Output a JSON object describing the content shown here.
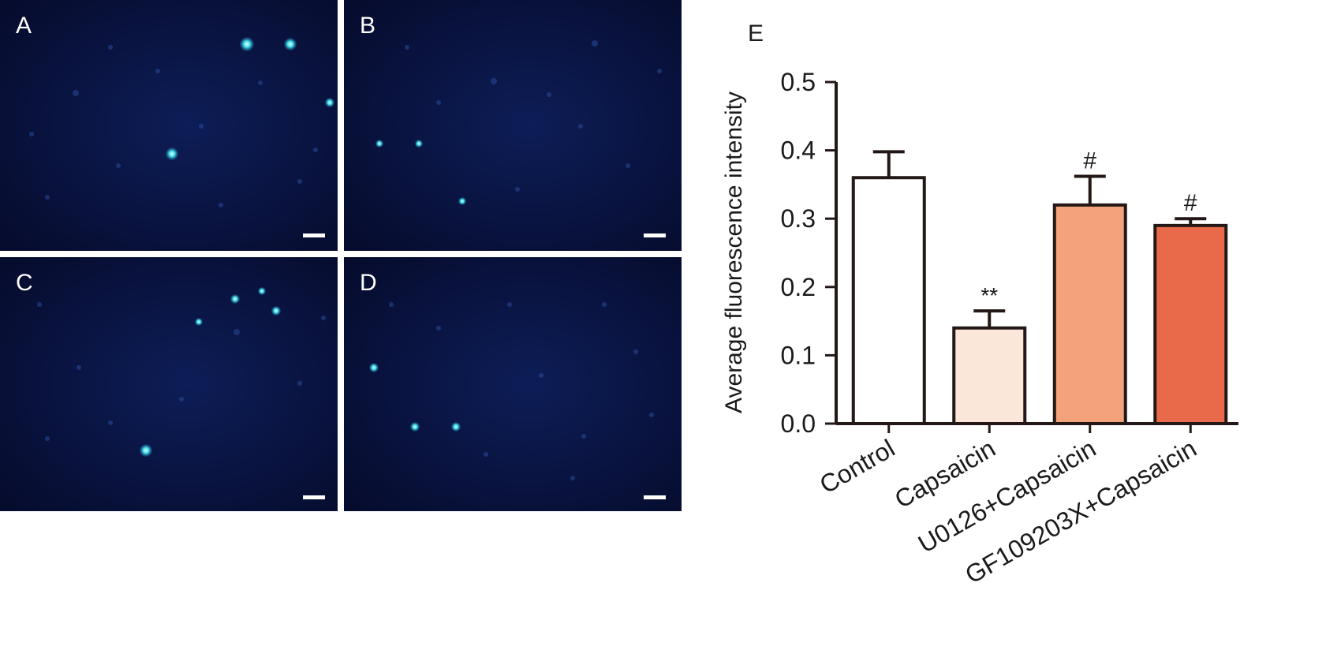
{
  "micrographs": [
    {
      "label": "A",
      "cells": [
        [
          313,
          56,
          9
        ],
        [
          368,
          56,
          8
        ],
        [
          218,
          195,
          8
        ],
        [
          418,
          130,
          6
        ],
        [
          96,
          118,
          4
        ],
        [
          150,
          210,
          3
        ],
        [
          330,
          105,
          3
        ],
        [
          60,
          250,
          3
        ],
        [
          255,
          160,
          3
        ],
        [
          380,
          230,
          3
        ],
        [
          140,
          60,
          3
        ],
        [
          200,
          90,
          3
        ],
        [
          280,
          260,
          3
        ],
        [
          40,
          170,
          3
        ],
        [
          400,
          190,
          3
        ]
      ]
    },
    {
      "label": "B",
      "cells": [
        [
          190,
          103,
          4
        ],
        [
          45,
          182,
          5
        ],
        [
          95,
          182,
          5
        ],
        [
          150,
          255,
          5
        ],
        [
          318,
          55,
          4
        ],
        [
          260,
          120,
          3
        ],
        [
          360,
          210,
          3
        ],
        [
          80,
          60,
          3
        ],
        [
          220,
          240,
          3
        ],
        [
          300,
          160,
          3
        ],
        [
          400,
          90,
          3
        ],
        [
          120,
          130,
          3
        ]
      ]
    },
    {
      "label": "C",
      "cells": [
        [
          298,
          53,
          6
        ],
        [
          332,
          43,
          5
        ],
        [
          350,
          68,
          6
        ],
        [
          252,
          82,
          5
        ],
        [
          185,
          245,
          8
        ],
        [
          410,
          77,
          3
        ],
        [
          300,
          95,
          4
        ],
        [
          100,
          140,
          3
        ],
        [
          50,
          60,
          3
        ],
        [
          140,
          210,
          3
        ],
        [
          230,
          180,
          3
        ],
        [
          380,
          160,
          3
        ],
        [
          60,
          230,
          3
        ]
      ]
    },
    {
      "label": "D",
      "cells": [
        [
          38,
          140,
          6
        ],
        [
          90,
          215,
          6
        ],
        [
          142,
          215,
          6
        ],
        [
          304,
          227,
          3
        ],
        [
          180,
          250,
          3
        ],
        [
          120,
          90,
          3
        ],
        [
          250,
          150,
          3
        ],
        [
          330,
          60,
          3
        ],
        [
          390,
          200,
          3
        ],
        [
          60,
          60,
          3
        ],
        [
          210,
          60,
          3
        ],
        [
          290,
          280,
          3
        ],
        [
          370,
          120,
          3
        ]
      ]
    }
  ],
  "chart_data": {
    "type": "bar",
    "panel_label": "E",
    "title": "",
    "xlabel": "",
    "ylabel": "Average fluorescence intensity",
    "ylim": [
      0,
      0.5
    ],
    "yticks": [
      "0.0",
      "0.1",
      "0.2",
      "0.3",
      "0.4",
      "0.5"
    ],
    "ytick_values": [
      0,
      0.1,
      0.2,
      0.3,
      0.4,
      0.5
    ],
    "categories": [
      "Control",
      "Capsaicin",
      "U0126+Capsaicin",
      "GF109203X+Capsaicin"
    ],
    "values": [
      0.36,
      0.14,
      0.32,
      0.29
    ],
    "errors": [
      0.038,
      0.025,
      0.042,
      0.01
    ],
    "annotations": [
      "",
      "**",
      "#",
      "#"
    ],
    "colors": [
      "#ffffff",
      "#fbe6da",
      "#f3a27c",
      "#e96a4a"
    ],
    "grid": false
  }
}
